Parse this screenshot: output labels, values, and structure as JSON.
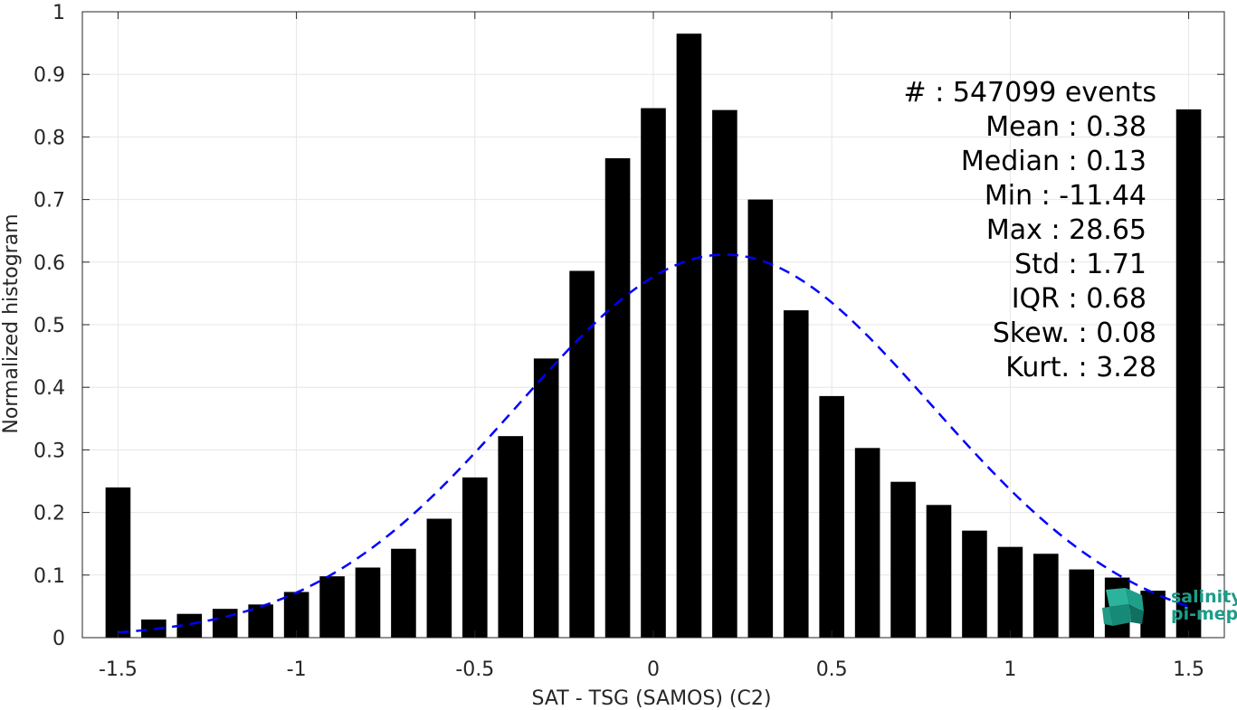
{
  "chart_data": {
    "type": "bar",
    "xlabel": "SAT - TSG (SAMOS) (C2)",
    "ylabel": "Normalized histogram",
    "xlim": [
      -1.6,
      1.6
    ],
    "ylim": [
      0,
      1
    ],
    "xticks": [
      -1.5,
      -1,
      -0.5,
      0,
      0.5,
      1,
      1.5
    ],
    "xtick_labels": [
      "-1.5",
      "-1",
      "-0.5",
      "0",
      "0.5",
      "1",
      "1.5"
    ],
    "yticks": [
      0,
      0.1,
      0.2,
      0.3,
      0.4,
      0.5,
      0.6,
      0.7,
      0.8,
      0.9,
      1
    ],
    "ytick_labels": [
      "0",
      "0.1",
      "0.2",
      "0.3",
      "0.4",
      "0.5",
      "0.6",
      "0.7",
      "0.8",
      "0.9",
      "1"
    ],
    "grid": true,
    "bar_color": "#000000",
    "bars": {
      "x": [
        -1.5,
        -1.4,
        -1.3,
        -1.2,
        -1.1,
        -1.0,
        -0.9,
        -0.8,
        -0.7,
        -0.6,
        -0.5,
        -0.4,
        -0.3,
        -0.2,
        -0.1,
        0.0,
        0.1,
        0.2,
        0.3,
        0.4,
        0.5,
        0.6,
        0.7,
        0.8,
        0.9,
        1.0,
        1.1,
        1.2,
        1.3,
        1.4,
        1.5
      ],
      "values": [
        0.24,
        0.029,
        0.038,
        0.046,
        0.053,
        0.073,
        0.098,
        0.112,
        0.142,
        0.19,
        0.256,
        0.322,
        0.446,
        0.586,
        0.766,
        0.846,
        0.965,
        0.843,
        0.7,
        0.523,
        0.386,
        0.303,
        0.249,
        0.212,
        0.171,
        0.145,
        0.134,
        0.109,
        0.096,
        0.075,
        0.844
      ]
    },
    "fit_curve": {
      "style": "dashed",
      "color": "#0000ff",
      "mean": 0.2,
      "sd": 0.58,
      "peak": 0.612,
      "x_range": [
        -1.5,
        1.5
      ]
    },
    "annotations": {
      "events": "#  : 547099 events",
      "mean": "Mean : 0.38",
      "median": "Median : 0.13",
      "min": "Min : -11.44",
      "max": "Max : 28.65",
      "std": "Std : 1.71",
      "iqr": "IQR : 0.68",
      "skew": "Skew. : 0.08",
      "kurt": "Kurt. : 3.28"
    }
  },
  "logo": {
    "line1": "salinity",
    "line2": "pi-mep",
    "color": "#1a9e8a"
  }
}
